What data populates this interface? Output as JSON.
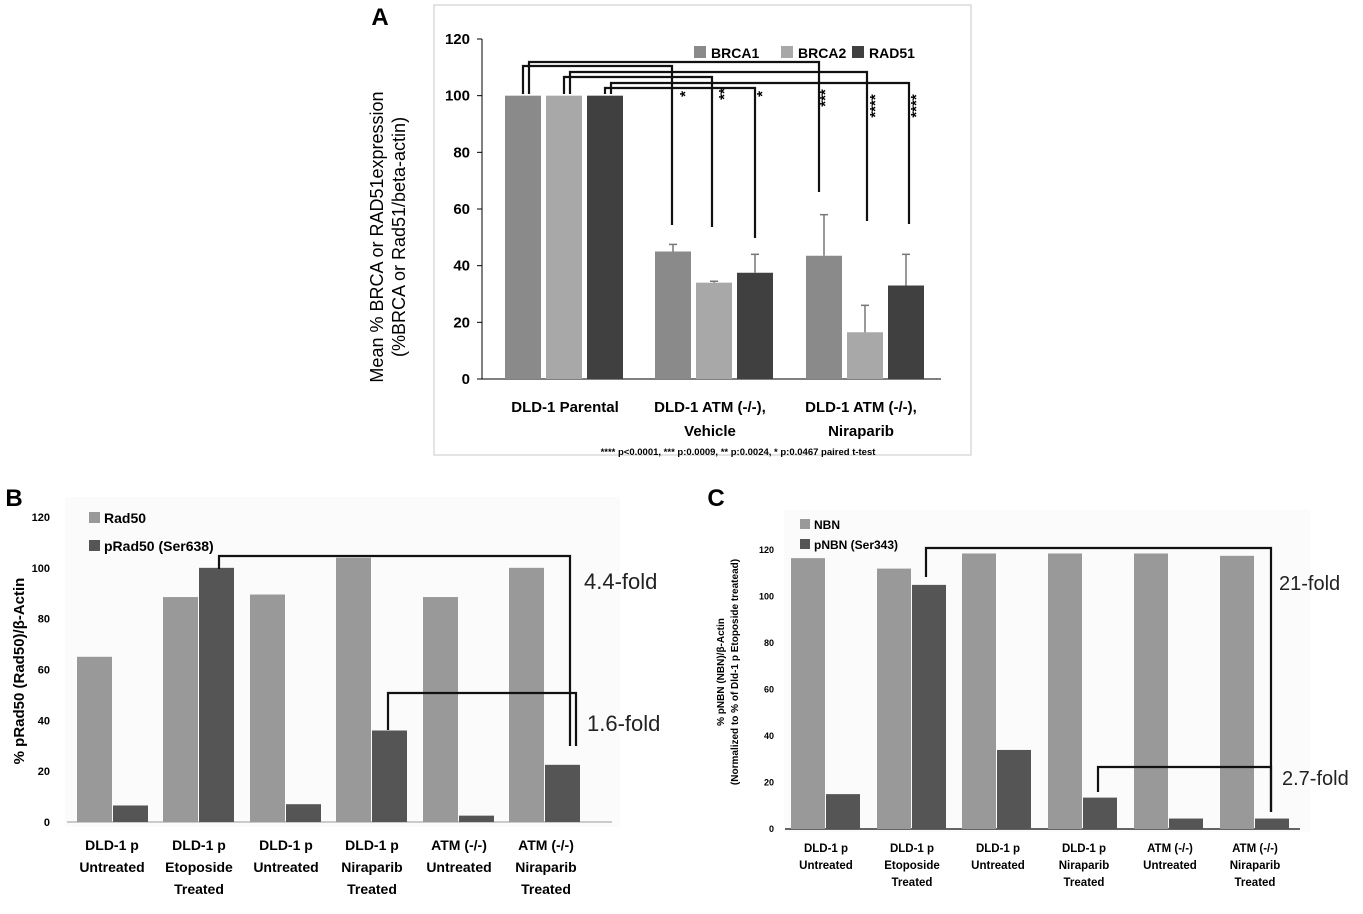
{
  "chart_data": [
    {
      "panel": "A",
      "type": "bar",
      "ylabel_line1": "Mean % BRCA or RAD51expression",
      "ylabel_line2": "(%BRCA or Rad51/beta-actin)",
      "ylim": [
        0,
        120
      ],
      "yticks": [
        0,
        20,
        40,
        60,
        80,
        100,
        120
      ],
      "categories": [
        [
          "DLD-1 Parental"
        ],
        [
          "DLD-1 ATM (-/-),",
          "Vehicle"
        ],
        [
          "DLD-1 ATM (-/-),",
          "Niraparib"
        ]
      ],
      "series": [
        {
          "name": "BRCA1",
          "color": "#8a8a8a",
          "values": [
            100,
            45,
            43.5
          ],
          "errors": [
            0,
            2.5,
            14.5
          ]
        },
        {
          "name": "BRCA2",
          "color": "#a8a8a8",
          "values": [
            100,
            34,
            16.5
          ],
          "errors": [
            0,
            0.5,
            9.5
          ]
        },
        {
          "name": "RAD51",
          "color": "#404040",
          "values": [
            100,
            37.5,
            33
          ],
          "errors": [
            0,
            6.5,
            11
          ]
        }
      ],
      "significance": [
        "*",
        "**",
        "*",
        "***",
        "****",
        "****"
      ],
      "footnote": "**** p<0.0001, *** p:0.0009, ** p:0.0024, * p:0.0467  paired t-test",
      "legend": "top-right"
    },
    {
      "panel": "B",
      "type": "bar",
      "ylabel": "% pRad50 (Rad50)/β-Actin",
      "ylim": [
        0,
        120
      ],
      "yticks": [
        0,
        20,
        40,
        60,
        80,
        100,
        120
      ],
      "categories": [
        [
          "DLD-1 p",
          "Untreated"
        ],
        [
          "DLD-1 p",
          "Etoposide",
          "Treated"
        ],
        [
          "DLD-1 p",
          "Untreated"
        ],
        [
          "DLD-1 p",
          "Niraparib",
          "Treated"
        ],
        [
          "ATM (-/-)",
          "Untreated"
        ],
        [
          "ATM (-/-)",
          "Niraparib",
          "Treated"
        ]
      ],
      "series": [
        {
          "name": "Rad50",
          "color": "#999999",
          "values": [
            65,
            88.5,
            89.5,
            104,
            88.5,
            100
          ]
        },
        {
          "name": "pRad50 (Ser638)",
          "color": "#555555",
          "values": [
            6.5,
            100,
            7,
            36,
            2.5,
            22.5
          ]
        }
      ],
      "annotations": [
        "4.4-fold",
        "1.6-fold"
      ],
      "legend": "top-left"
    },
    {
      "panel": "C",
      "type": "bar",
      "ylabel_line1": "% pNBN (NBN)/β-Actin",
      "ylabel_line2": "(Normalized to % of Dld-1 p Etoposide treatead)",
      "ylim": [
        0,
        120
      ],
      "yticks": [
        0,
        20,
        40,
        60,
        80,
        100,
        120
      ],
      "categories": [
        [
          "DLD-1 p",
          "Untreated"
        ],
        [
          "DLD-1 p",
          "Etoposide",
          "Treated"
        ],
        [
          "DLD-1 p",
          "Untreated"
        ],
        [
          "DLD-1 p",
          "Niraparib",
          "Treated"
        ],
        [
          "ATM (-/-)",
          "Untreated"
        ],
        [
          "ATM (-/-)",
          "Niraparib",
          "Treated"
        ]
      ],
      "series": [
        {
          "name": "NBN",
          "color": "#999999",
          "values": [
            116.5,
            112,
            118.5,
            118.5,
            118.5,
            117.5
          ]
        },
        {
          "name": "pNBN (Ser343)",
          "color": "#555555",
          "values": [
            15,
            105,
            34,
            13.5,
            4.5,
            4.5
          ]
        }
      ],
      "annotations": [
        "21-fold",
        "2.7-fold"
      ],
      "legend": "top-left"
    }
  ]
}
